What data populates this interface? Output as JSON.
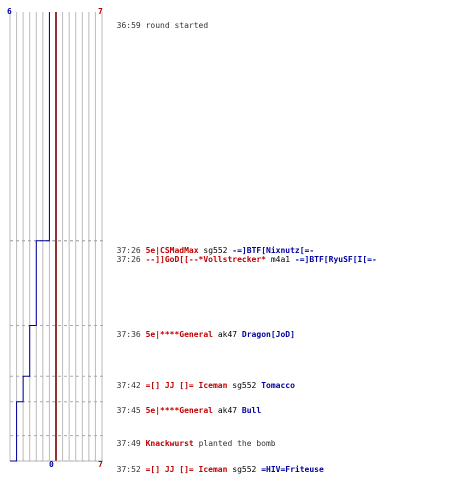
{
  "log": {
    "start": {
      "time": "36:59",
      "text": "round started"
    },
    "events": [
      {
        "time": "37:26",
        "killer": "5e|CSMadMax",
        "weapon": "sg552",
        "victim": "-=]BTF[Nixnutz[=-",
        "killer_team": "t",
        "victim_team": "ct"
      },
      {
        "time": "37:26",
        "killer": "--]]GoD[[--*Vollstrecker*",
        "weapon": "m4a1",
        "victim": "-=]BTF[RyuSF[I[=-",
        "killer_team": "t",
        "victim_team": "ct"
      },
      {
        "time": "37:36",
        "killer": "5e|****General",
        "weapon": "ak47",
        "victim": "Dragon[JoD]",
        "killer_team": "t",
        "victim_team": "ct"
      },
      {
        "time": "37:42",
        "killer": "=[] JJ []= Iceman",
        "weapon": "sg552",
        "victim": "Tomacco",
        "killer_team": "t",
        "victim_team": "ct"
      },
      {
        "time": "37:45",
        "killer": "5e|****General",
        "weapon": "ak47",
        "victim": "Bull",
        "killer_team": "t",
        "victim_team": "ct"
      },
      {
        "time": "37:52",
        "killer": "=[] JJ []= Iceman",
        "weapon": "sg552",
        "victim": "=HIV=Friteuse",
        "killer_team": "t",
        "victim_team": "ct"
      }
    ],
    "bomb": {
      "time": "37:49",
      "player": "Knackwurst",
      "text": "planted the bomb"
    }
  },
  "axis": {
    "blue_top": "6",
    "red_top": "7",
    "blue_bottom": "0",
    "red_bottom": "7"
  },
  "colors": {
    "t": "#c00000",
    "ct": "#0000a0",
    "grid": "#bbbbbb",
    "center": "#666666"
  },
  "chart_data": {
    "type": "line",
    "x": [
      "36:59",
      "37:26",
      "37:26",
      "37:36",
      "37:42",
      "37:45",
      "37:49",
      "37:52"
    ],
    "series": [
      {
        "values": [
          6,
          4,
          4,
          3,
          2,
          1,
          1,
          0
        ]
      },
      {
        "values": [
          7,
          7,
          7,
          7,
          7,
          7,
          7,
          7
        ]
      }
    ],
    "ylim": [
      0,
      7
    ]
  }
}
